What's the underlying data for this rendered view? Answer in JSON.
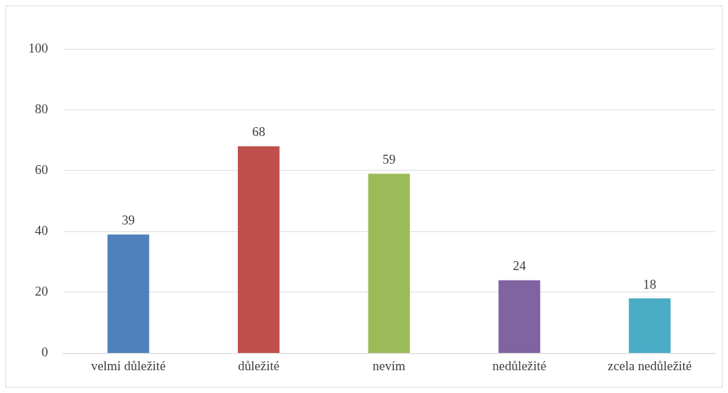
{
  "chart_data": {
    "type": "bar",
    "categories": [
      "velmi důležité",
      "důležité",
      "nevím",
      "nedůležité",
      "zcela nedůležité"
    ],
    "values": [
      39,
      68,
      59,
      24,
      18
    ],
    "colors": [
      "#4f81bd",
      "#c0504d",
      "#9bbb59",
      "#8064a2",
      "#4bacc6"
    ],
    "ylim": [
      0,
      100
    ],
    "yticks": [
      0,
      20,
      40,
      60,
      80,
      100
    ],
    "grid": "y",
    "legend": false,
    "data_labels": true
  }
}
